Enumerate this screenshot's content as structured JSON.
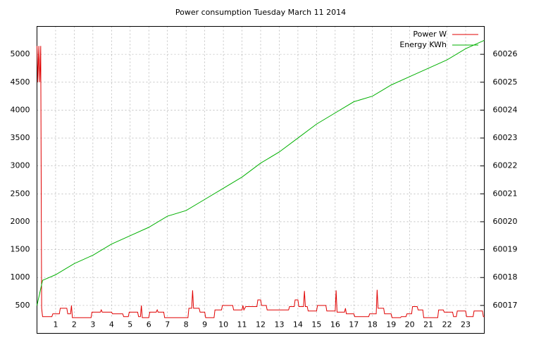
{
  "chart_data": {
    "type": "line",
    "title": "Power consumption Tuesday March 11 2014",
    "xlim": [
      0,
      24
    ],
    "xticks": [
      1,
      2,
      3,
      4,
      5,
      6,
      7,
      8,
      9,
      10,
      11,
      12,
      13,
      14,
      15,
      16,
      17,
      18,
      19,
      20,
      21,
      22,
      23
    ],
    "ylim": [
      0,
      5500
    ],
    "yticks": [
      500,
      1000,
      1500,
      2000,
      2500,
      3000,
      3500,
      4000,
      4500,
      5000
    ],
    "y2lim": [
      60016,
      60027
    ],
    "y2ticks": [
      60017,
      60018,
      60019,
      60020,
      60021,
      60022,
      60023,
      60024,
      60025,
      60026
    ],
    "grid": true,
    "legend": "top-right",
    "series": [
      {
        "name": "Power W",
        "color": "#e00000",
        "x": [
          0,
          0.05,
          0.1,
          0.15,
          0.2,
          0.25,
          0.3,
          0.8,
          0.85,
          1.2,
          1.25,
          1.6,
          1.65,
          1.8,
          1.85,
          1.9,
          2.9,
          2.95,
          3.4,
          3.45,
          3.5,
          4,
          4.05,
          4.6,
          4.65,
          4.9,
          4.95,
          5.4,
          5.45,
          5.55,
          5.6,
          5.65,
          6,
          6.05,
          6.4,
          6.45,
          6.5,
          6.8,
          6.85,
          8.1,
          8.15,
          8.3,
          8.35,
          8.4,
          8.7,
          8.75,
          9,
          9.05,
          9.5,
          9.55,
          9.9,
          9.95,
          10.5,
          10.55,
          11,
          11.05,
          11.1,
          11.2,
          11.8,
          11.85,
          12,
          12.05,
          12.3,
          12.35,
          13.5,
          13.55,
          13.8,
          13.85,
          14,
          14.05,
          14.3,
          14.35,
          14.4,
          14.5,
          14.55,
          15,
          15.05,
          15.5,
          15.55,
          16,
          16.05,
          16.1,
          16.5,
          16.55,
          16.6,
          17,
          17.05,
          17.8,
          17.85,
          18.2,
          18.25,
          18.3,
          18.6,
          18.65,
          19,
          19.05,
          19.5,
          19.55,
          19.8,
          19.85,
          20.1,
          20.15,
          20.4,
          20.45,
          20.7,
          20.75,
          21.5,
          21.55,
          21.8,
          21.85,
          22.3,
          22.35,
          22.5,
          22.55,
          23,
          23.05,
          23.4,
          23.45,
          23.9,
          23.95,
          24
        ],
        "values": [
          5150,
          4500,
          5150,
          4500,
          5150,
          450,
          300,
          300,
          350,
          350,
          450,
          450,
          350,
          350,
          500,
          280,
          280,
          380,
          380,
          420,
          380,
          380,
          350,
          350,
          300,
          300,
          380,
          380,
          300,
          300,
          500,
          280,
          280,
          380,
          380,
          420,
          380,
          380,
          280,
          280,
          450,
          450,
          770,
          450,
          450,
          380,
          380,
          280,
          280,
          420,
          420,
          500,
          500,
          420,
          420,
          500,
          420,
          480,
          480,
          600,
          600,
          500,
          500,
          420,
          420,
          480,
          480,
          600,
          600,
          480,
          480,
          760,
          480,
          480,
          400,
          400,
          500,
          500,
          400,
          400,
          770,
          380,
          380,
          450,
          350,
          350,
          300,
          300,
          350,
          350,
          780,
          450,
          450,
          350,
          350,
          280,
          280,
          300,
          300,
          350,
          350,
          480,
          480,
          420,
          420,
          280,
          280,
          420,
          420,
          380,
          380,
          300,
          300,
          400,
          400,
          300,
          300,
          400,
          400,
          300,
          300
        ]
      },
      {
        "name": "Energy KWh",
        "color": "#00b000",
        "axis": "y2",
        "x": [
          0,
          0.3,
          1,
          2,
          3,
          4,
          5,
          6,
          7,
          8,
          9,
          10,
          11,
          12,
          13,
          14,
          15,
          16,
          17,
          18,
          19,
          20,
          21,
          22,
          23,
          24
        ],
        "values": [
          60017.0,
          60017.9,
          60018.1,
          60018.5,
          60018.8,
          60019.2,
          60019.5,
          60019.8,
          60020.2,
          60020.4,
          60020.8,
          60021.2,
          60021.6,
          60022.1,
          60022.5,
          60023.0,
          60023.5,
          60023.9,
          60024.3,
          60024.5,
          60024.9,
          60025.2,
          60025.5,
          60025.8,
          60026.2,
          60026.5
        ]
      }
    ]
  }
}
